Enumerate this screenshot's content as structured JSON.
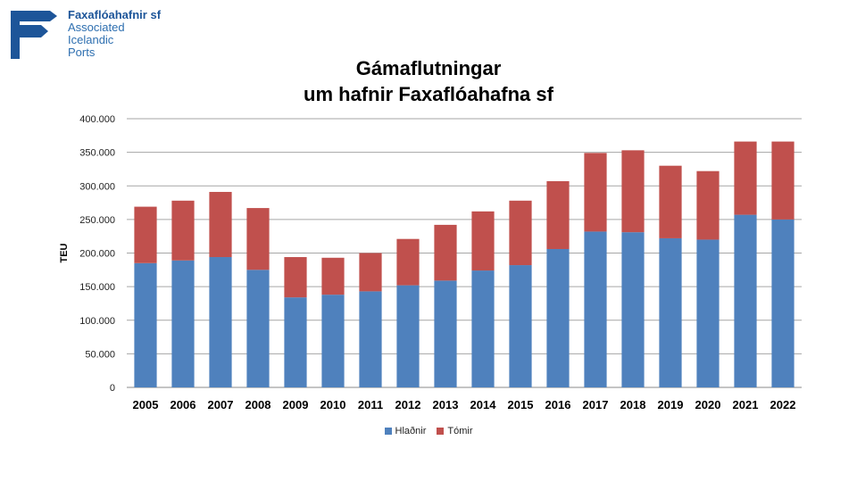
{
  "logo": {
    "line1": "Faxaflóahafnir sf",
    "line2": "Associated",
    "line3": "Icelandic",
    "line4": "Ports",
    "color": "#1d5599"
  },
  "chart_data": {
    "type": "bar",
    "stacked": true,
    "title_line1": "Gámaflutningar",
    "title_line2": "um hafnir Faxaflóahafna sf",
    "xlabel": "",
    "ylabel": "TEU",
    "ylim": [
      0,
      400000
    ],
    "yticks": [
      0,
      50000,
      100000,
      150000,
      200000,
      250000,
      300000,
      350000,
      400000
    ],
    "ytick_labels": [
      "0",
      "50.000",
      "100.000",
      "150.000",
      "200.000",
      "250.000",
      "300.000",
      "350.000",
      "400.000"
    ],
    "grid": true,
    "legend_position": "bottom",
    "categories": [
      "2005",
      "2006",
      "2007",
      "2008",
      "2009",
      "2010",
      "2011",
      "2012",
      "2013",
      "2014",
      "2015",
      "2016",
      "2017",
      "2018",
      "2019",
      "2020",
      "2021",
      "2022"
    ],
    "series": [
      {
        "name": "Hlaðnir",
        "color": "#4f81bd",
        "values": [
          185000,
          189000,
          194000,
          175000,
          134000,
          138000,
          143000,
          152000,
          159000,
          174000,
          182000,
          206000,
          232000,
          231000,
          222000,
          220000,
          257000,
          250000
        ]
      },
      {
        "name": "Tómir",
        "color": "#c0504d",
        "values": [
          84000,
          89000,
          97000,
          92000,
          60000,
          55000,
          57000,
          69000,
          83000,
          88000,
          96000,
          101000,
          117000,
          122000,
          108000,
          102000,
          109000,
          116000
        ]
      }
    ]
  }
}
